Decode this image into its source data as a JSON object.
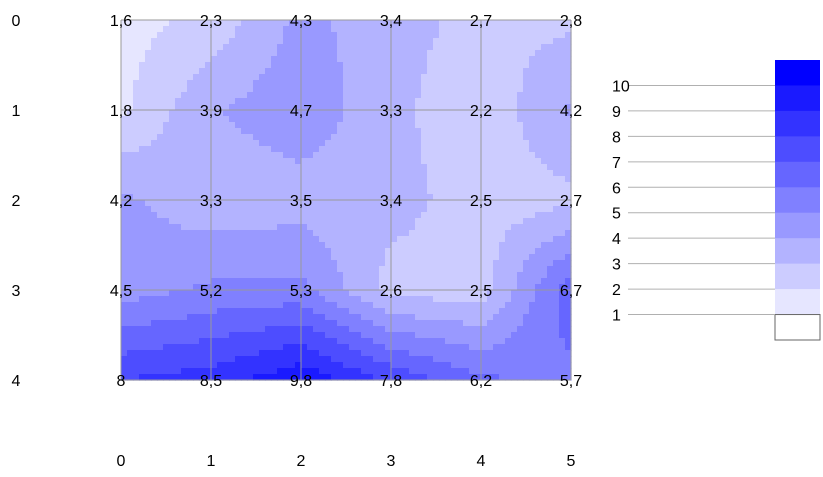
{
  "chart_data": {
    "type": "heatmap",
    "title": "",
    "xlabel": "",
    "ylabel": "",
    "x": [
      0,
      1,
      2,
      3,
      4,
      5
    ],
    "y": [
      0,
      1,
      2,
      3,
      4
    ],
    "x_tick_labels": [
      "0",
      "1",
      "2",
      "3",
      "4",
      "5"
    ],
    "y_tick_labels": [
      "0",
      "1",
      "2",
      "3",
      "4"
    ],
    "values": [
      [
        1.6,
        2.3,
        4.3,
        3.4,
        2.7,
        2.8
      ],
      [
        1.8,
        3.9,
        4.7,
        3.3,
        2.2,
        4.2
      ],
      [
        4.2,
        3.3,
        3.5,
        3.4,
        2.5,
        2.7
      ],
      [
        4.5,
        5.2,
        5.3,
        2.6,
        2.5,
        6.7
      ],
      [
        8,
        8.5,
        9.8,
        7.8,
        6.2,
        5.7
      ]
    ],
    "value_labels": [
      [
        "1,6",
        "2,3",
        "4,3",
        "3,4",
        "2,7",
        "2,8"
      ],
      [
        "1,8",
        "3,9",
        "4,7",
        "3,3",
        "2,2",
        "4,2"
      ],
      [
        "4,2",
        "3,3",
        "3,5",
        "3,4",
        "2,5",
        "2,7"
      ],
      [
        "4,5",
        "5,2",
        "5,3",
        "2,6",
        "2,5",
        "6,7"
      ],
      [
        "8",
        "8,5",
        "9,8",
        "7,8",
        "6,2",
        "5,7"
      ]
    ],
    "legend": {
      "placement": "right",
      "levels": [
        "1",
        "2",
        "3",
        "4",
        "5",
        "6",
        "7",
        "8",
        "9",
        "10"
      ],
      "min": 0,
      "max": 11
    },
    "colors": {
      "low": "#ffffff",
      "high": "#0000ff",
      "grid": "#999999"
    },
    "grid": true
  }
}
